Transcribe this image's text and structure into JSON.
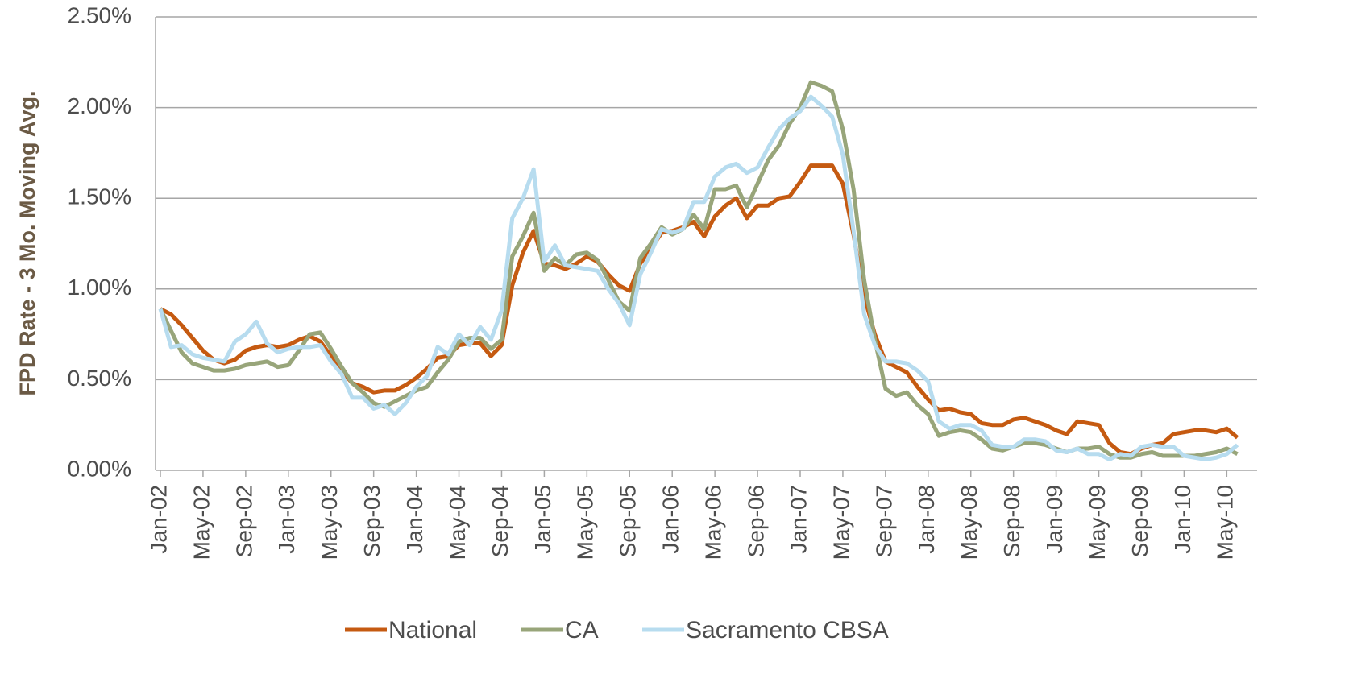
{
  "chart_data": {
    "type": "line",
    "y_label": "FPD Rate - 3 Mo. Moving Avg.",
    "categories": [
      "Jan-02",
      null,
      null,
      null,
      "May-02",
      null,
      null,
      null,
      "Sep-02",
      null,
      null,
      null,
      "Jan-03",
      null,
      null,
      null,
      "May-03",
      null,
      null,
      null,
      "Sep-03",
      null,
      null,
      null,
      "Jan-04",
      null,
      null,
      null,
      "May-04",
      null,
      null,
      null,
      "Sep-04",
      null,
      null,
      null,
      "Jan-05",
      null,
      null,
      null,
      "May-05",
      null,
      null,
      null,
      "Sep-05",
      null,
      null,
      null,
      "Jan-06",
      null,
      null,
      null,
      "May-06",
      null,
      null,
      null,
      "Sep-06",
      null,
      null,
      null,
      "Jan-07",
      null,
      null,
      null,
      "May-07",
      null,
      null,
      null,
      "Sep-07",
      null,
      null,
      null,
      "Jan-08",
      null,
      null,
      null,
      "May-08",
      null,
      null,
      null,
      "Sep-08",
      null,
      null,
      null,
      "Jan-09",
      null,
      null,
      null,
      "May-09",
      null,
      null,
      null,
      "Sep-09",
      null,
      null,
      null,
      "Jan-10",
      null,
      null,
      null,
      "May-10",
      null
    ],
    "series": [
      {
        "name": "National",
        "color": "#c55a11",
        "values": [
          0.89,
          0.86,
          0.8,
          0.73,
          0.66,
          0.61,
          0.59,
          0.61,
          0.66,
          0.68,
          0.69,
          0.68,
          0.69,
          0.72,
          0.74,
          0.71,
          0.63,
          0.55,
          0.48,
          0.46,
          0.43,
          0.44,
          0.44,
          0.47,
          0.51,
          0.56,
          0.62,
          0.63,
          0.69,
          0.7,
          0.7,
          0.63,
          0.69,
          1.02,
          1.2,
          1.32,
          1.14,
          1.13,
          1.11,
          1.14,
          1.18,
          1.15,
          1.08,
          1.02,
          0.99,
          1.14,
          1.22,
          1.31,
          1.32,
          1.34,
          1.37,
          1.29,
          1.4,
          1.46,
          1.5,
          1.39,
          1.46,
          1.46,
          1.5,
          1.51,
          1.59,
          1.68,
          1.68,
          1.68,
          1.58,
          1.3,
          0.96,
          0.75,
          0.6,
          0.57,
          0.54,
          0.46,
          0.39,
          0.33,
          0.34,
          0.32,
          0.31,
          0.26,
          0.25,
          0.25,
          0.28,
          0.29,
          0.27,
          0.25,
          0.22,
          0.2,
          0.27,
          0.26,
          0.25,
          0.15,
          0.1,
          0.09,
          0.12,
          0.14,
          0.15,
          0.2,
          0.21,
          0.22,
          0.22,
          0.21,
          0.23,
          0.18
        ]
      },
      {
        "name": "CA",
        "color": "#98a57a",
        "values": [
          0.89,
          0.77,
          0.65,
          0.59,
          0.57,
          0.55,
          0.55,
          0.56,
          0.58,
          0.59,
          0.6,
          0.57,
          0.58,
          0.66,
          0.75,
          0.76,
          0.67,
          0.57,
          0.48,
          0.43,
          0.37,
          0.35,
          0.38,
          0.41,
          0.44,
          0.46,
          0.54,
          0.61,
          0.71,
          0.73,
          0.73,
          0.67,
          0.72,
          1.18,
          1.29,
          1.42,
          1.1,
          1.17,
          1.13,
          1.19,
          1.2,
          1.16,
          1.05,
          0.93,
          0.88,
          1.17,
          1.25,
          1.34,
          1.3,
          1.33,
          1.41,
          1.33,
          1.55,
          1.55,
          1.57,
          1.45,
          1.58,
          1.71,
          1.79,
          1.91,
          2.0,
          2.14,
          2.12,
          2.09,
          1.88,
          1.55,
          1.05,
          0.72,
          0.45,
          0.41,
          0.43,
          0.36,
          0.31,
          0.19,
          0.21,
          0.22,
          0.21,
          0.17,
          0.12,
          0.11,
          0.13,
          0.15,
          0.15,
          0.14,
          0.12,
          0.1,
          0.12,
          0.12,
          0.13,
          0.09,
          0.07,
          0.07,
          0.09,
          0.1,
          0.08,
          0.08,
          0.08,
          0.08,
          0.09,
          0.1,
          0.12,
          0.09
        ]
      },
      {
        "name": "Sacramento CBSA",
        "color": "#b7dcef",
        "values": [
          0.89,
          0.68,
          0.69,
          0.64,
          0.62,
          0.61,
          0.6,
          0.71,
          0.75,
          0.82,
          0.7,
          0.65,
          0.67,
          0.68,
          0.68,
          0.69,
          0.6,
          0.53,
          0.4,
          0.4,
          0.34,
          0.36,
          0.31,
          0.37,
          0.46,
          0.52,
          0.68,
          0.64,
          0.75,
          0.69,
          0.79,
          0.72,
          0.88,
          1.39,
          1.5,
          1.66,
          1.15,
          1.24,
          1.13,
          1.12,
          1.11,
          1.1,
          1.0,
          0.92,
          0.8,
          1.08,
          1.2,
          1.33,
          1.31,
          1.33,
          1.48,
          1.48,
          1.62,
          1.67,
          1.69,
          1.64,
          1.67,
          1.78,
          1.88,
          1.94,
          1.98,
          2.06,
          2.01,
          1.95,
          1.74,
          1.32,
          0.86,
          0.69,
          0.6,
          0.6,
          0.59,
          0.55,
          0.49,
          0.27,
          0.23,
          0.25,
          0.25,
          0.22,
          0.14,
          0.13,
          0.13,
          0.17,
          0.17,
          0.16,
          0.11,
          0.1,
          0.12,
          0.09,
          0.09,
          0.06,
          0.09,
          0.08,
          0.13,
          0.14,
          0.13,
          0.13,
          0.08,
          0.07,
          0.06,
          0.07,
          0.09,
          0.14
        ]
      }
    ],
    "ylim": [
      0,
      2.5
    ],
    "yticks": [
      {
        "value": 0,
        "label": "0.00%"
      },
      {
        "value": 0.5,
        "label": "0.50%"
      },
      {
        "value": 1,
        "label": "1.00%"
      },
      {
        "value": 1.5,
        "label": "1.50%"
      },
      {
        "value": 2,
        "label": "2.00%"
      },
      {
        "value": 2.5,
        "label": "2.50%"
      }
    ],
    "grid": true,
    "legend": "bottom"
  }
}
